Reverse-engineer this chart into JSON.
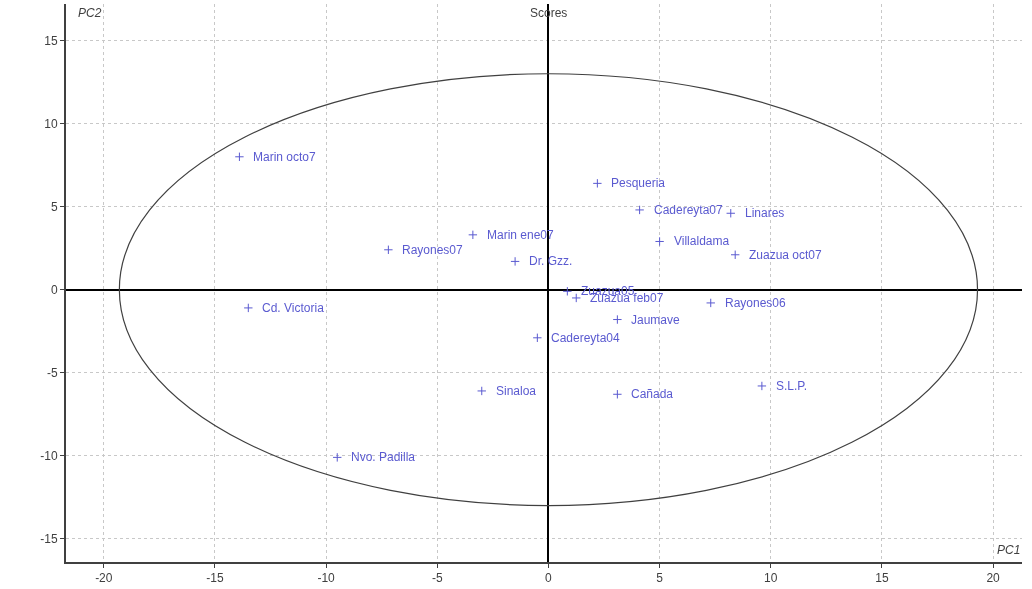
{
  "chart_data": {
    "type": "scatter",
    "title": "Scores",
    "xlabel": "PC1",
    "ylabel": "PC2",
    "xlim": [
      -21.7,
      21.3
    ],
    "ylim": [
      -16.4,
      17.2
    ],
    "xticks": [
      -20,
      -15,
      -10,
      -5,
      0,
      5,
      10,
      15,
      20
    ],
    "yticks": [
      -15,
      -10,
      -5,
      0,
      5,
      10,
      15
    ],
    "grid": true,
    "series": [
      {
        "color": "#5a5ad0",
        "marker": "cross",
        "x": [
          -13.9,
          2.2,
          4.1,
          8.2,
          -3.4,
          -7.2,
          -1.5,
          5.0,
          8.4,
          0.85,
          1.25,
          7.3,
          3.1,
          -0.5,
          -13.5,
          -3.0,
          3.1,
          9.6,
          -9.5
        ],
        "values": [
          8.0,
          6.4,
          4.8,
          4.6,
          3.3,
          2.4,
          1.7,
          2.9,
          2.1,
          -0.1,
          -0.5,
          -0.8,
          -1.8,
          -2.9,
          -1.1,
          -6.1,
          -6.3,
          -5.8,
          -10.1
        ]
      }
    ],
    "annotations": [
      {
        "text": "Marin octo7",
        "x": -13.9,
        "y": 8.0
      },
      {
        "text": "Pesqueria",
        "x": 2.2,
        "y": 6.4
      },
      {
        "text": "Cadereyta07",
        "x": 4.1,
        "y": 4.8
      },
      {
        "text": "Linares",
        "x": 8.2,
        "y": 4.6
      },
      {
        "text": "Marin ene07",
        "x": -3.4,
        "y": 3.3
      },
      {
        "text": "Rayones07",
        "x": -7.2,
        "y": 2.4
      },
      {
        "text": "Dr. Gzz.",
        "x": -1.5,
        "y": 1.7
      },
      {
        "text": "Villaldama",
        "x": 5.0,
        "y": 2.9
      },
      {
        "text": "Zuazua oct07",
        "x": 8.4,
        "y": 2.1
      },
      {
        "text": "Zuazua05",
        "x": 0.85,
        "y": -0.1
      },
      {
        "text": "Zuazua feb07",
        "x": 1.25,
        "y": -0.5
      },
      {
        "text": "Rayones06",
        "x": 7.3,
        "y": -0.8
      },
      {
        "text": "Jaumave",
        "x": 3.1,
        "y": -1.8
      },
      {
        "text": "Cadereyta04",
        "x": -0.5,
        "y": -2.9
      },
      {
        "text": "Cd. Victoria",
        "x": -13.5,
        "y": -1.1
      },
      {
        "text": "Sinaloa",
        "x": -3.0,
        "y": -6.1
      },
      {
        "text": "Cañada",
        "x": 3.1,
        "y": -6.3
      },
      {
        "text": "S.L.P.",
        "x": 9.6,
        "y": -5.8
      },
      {
        "text": "Nvo. Padilla",
        "x": -9.5,
        "y": -10.1
      }
    ]
  }
}
